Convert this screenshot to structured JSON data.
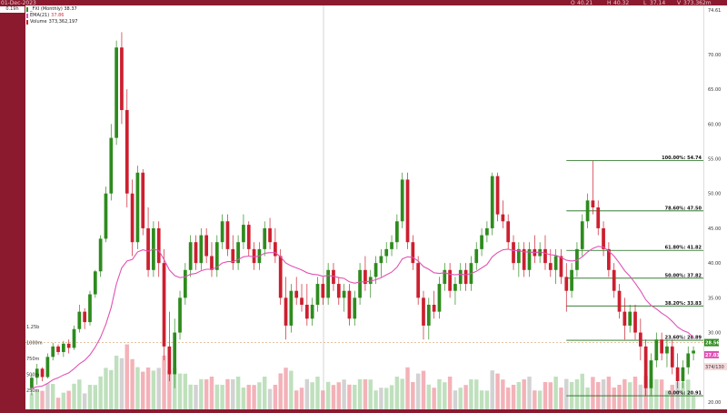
{
  "header": {
    "date_label": "01-Dec-2023",
    "open": "O",
    "open_val": "40.21",
    "high": "H",
    "high_val": "40.32",
    "low": "L",
    "low_val": "37.14",
    "volume": "V",
    "volume_val": "373.362m"
  },
  "left_price_box": "0.19h",
  "legend": {
    "symbol": "_FXI (Monthly) 38.37",
    "ema": "EMA(21)",
    "ema_val": "37.86",
    "vol": "Volume",
    "vol_val": "373,362,197"
  },
  "colors": {
    "up": "#2e8b1e",
    "down": "#cc1f2f",
    "ema": "#e052b3",
    "fib": "#1a6b1a",
    "vol_up": "#bfe0bd",
    "vol_down": "#f3b2b8",
    "vol_gray": "#d2d2d2",
    "frame": "#8b1a2f"
  },
  "chart_data": {
    "type": "candlestick",
    "price_axis": {
      "range": [
        20,
        76
      ],
      "ticks": [
        20,
        25,
        30,
        35,
        40,
        45,
        50,
        55,
        60,
        65,
        70
      ],
      "tick_labels": [
        "20.00",
        "25.00",
        "30.00",
        "35.00",
        "40.00",
        "45.00",
        "50.00",
        "55.00",
        "60.00",
        "65.00",
        "70.00"
      ],
      "top_label": "74.61",
      "current_price_label": "28.56",
      "ema_label": "27.03",
      "last_price_label": "27.41",
      "volume_label": "374/130"
    },
    "volume_axis": {
      "tick_labels": [
        "1.25b",
        "1000m",
        "750m",
        "500m",
        "250m"
      ],
      "tick_values": [
        1250,
        1000,
        750,
        500,
        250
      ]
    },
    "fibonacci": [
      {
        "label": "100.00%: 54.74",
        "price": 54.74
      },
      {
        "label": "78.60%: 47.50",
        "price": 47.5
      },
      {
        "label": "61.80%: 41.82",
        "price": 41.82
      },
      {
        "label": "50.00%: 37.82",
        "price": 37.82
      },
      {
        "label": "38.20%: 33.83",
        "price": 33.83
      },
      {
        "label": "23.60%: 28.89",
        "price": 28.89
      },
      {
        "label": "0.00%: 20.91",
        "price": 20.91
      }
    ],
    "candles": [
      [
        22,
        24,
        21,
        23.5
      ],
      [
        23.5,
        25.5,
        22.5,
        24.8
      ],
      [
        24.8,
        25,
        23,
        23.6
      ],
      [
        23.6,
        27,
        23.4,
        26.5
      ],
      [
        26.5,
        28.5,
        26,
        28
      ],
      [
        28,
        28.3,
        26.8,
        27.2
      ],
      [
        27.2,
        28.8,
        26.5,
        28.4
      ],
      [
        28.4,
        29,
        27,
        27.8
      ],
      [
        27.8,
        31,
        27.5,
        30.5
      ],
      [
        30.5,
        34,
        30,
        33
      ],
      [
        33,
        33.5,
        30.5,
        31.5
      ],
      [
        31.5,
        36,
        31,
        35.5
      ],
      [
        35.5,
        39,
        35,
        38.8
      ],
      [
        38.8,
        44,
        38,
        43.5
      ],
      [
        43.5,
        51,
        43,
        50
      ],
      [
        50,
        60,
        49,
        58
      ],
      [
        58,
        72,
        57,
        71
      ],
      [
        71,
        73.2,
        60,
        62
      ],
      [
        62,
        65,
        48,
        50
      ],
      [
        50,
        52,
        41,
        43
      ],
      [
        43,
        54,
        42,
        53
      ],
      [
        53,
        53.5,
        44,
        45
      ],
      [
        45,
        48,
        38,
        39
      ],
      [
        39,
        46,
        38,
        45
      ],
      [
        45,
        46,
        38,
        40
      ],
      [
        40,
        42,
        26,
        28
      ],
      [
        28,
        33,
        23,
        24
      ],
      [
        24,
        32,
        22,
        30
      ],
      [
        30,
        36,
        29,
        35
      ],
      [
        35,
        40,
        34,
        39
      ],
      [
        39,
        44,
        38,
        43
      ],
      [
        43,
        44,
        39,
        40
      ],
      [
        40,
        45,
        39,
        44
      ],
      [
        44,
        45,
        40,
        41
      ],
      [
        41,
        43,
        38,
        39
      ],
      [
        39,
        44,
        38,
        43
      ],
      [
        43,
        47,
        42,
        46
      ],
      [
        46,
        47,
        41,
        42
      ],
      [
        42,
        44,
        39,
        40
      ],
      [
        40,
        44,
        39,
        43
      ],
      [
        43,
        47,
        42,
        45.5
      ],
      [
        45.5,
        46,
        41,
        42
      ],
      [
        42,
        43,
        39,
        40
      ],
      [
        40,
        43,
        39,
        42
      ],
      [
        42,
        46,
        41,
        45
      ],
      [
        45,
        46.5,
        42,
        43
      ],
      [
        43,
        45,
        40,
        41
      ],
      [
        41,
        42,
        34,
        35
      ],
      [
        35,
        38,
        29,
        31
      ],
      [
        31,
        37,
        30,
        36
      ],
      [
        36,
        38,
        34,
        35
      ],
      [
        35,
        37,
        33,
        34
      ],
      [
        34,
        37,
        31,
        32
      ],
      [
        32,
        35,
        31,
        34
      ],
      [
        34,
        38,
        33,
        37
      ],
      [
        37,
        38,
        34,
        35
      ],
      [
        35,
        40,
        34,
        39
      ],
      [
        39,
        40,
        36,
        37
      ],
      [
        37,
        38,
        34,
        35
      ],
      [
        35,
        37,
        33,
        36
      ],
      [
        36,
        37,
        31,
        32
      ],
      [
        32,
        36,
        31,
        35
      ],
      [
        35,
        40,
        34,
        39
      ],
      [
        39,
        41,
        36,
        37
      ],
      [
        37,
        39,
        35,
        38
      ],
      [
        38,
        41,
        37,
        40
      ],
      [
        40,
        42,
        38,
        41
      ],
      [
        41,
        43,
        40,
        42
      ],
      [
        42,
        44,
        41,
        43
      ],
      [
        43,
        47,
        42,
        46
      ],
      [
        46,
        53,
        45,
        52
      ],
      [
        52,
        53,
        42,
        43
      ],
      [
        43,
        44,
        39,
        40
      ],
      [
        40,
        41,
        34,
        35
      ],
      [
        35,
        36,
        29,
        31
      ],
      [
        31,
        35,
        29,
        34
      ],
      [
        34,
        36,
        32,
        33
      ],
      [
        33,
        38,
        32,
        37
      ],
      [
        37,
        40,
        36,
        39
      ],
      [
        39,
        40,
        35,
        36
      ],
      [
        36,
        38,
        34,
        37
      ],
      [
        37,
        40,
        36,
        39
      ],
      [
        39,
        40,
        36,
        37
      ],
      [
        37,
        41,
        36,
        40
      ],
      [
        40,
        43,
        39,
        42
      ],
      [
        42,
        45,
        41,
        44
      ],
      [
        44,
        46,
        43,
        45
      ],
      [
        45,
        53,
        44,
        52.5
      ],
      [
        52.5,
        53,
        46,
        47
      ],
      [
        47,
        49,
        45,
        46
      ],
      [
        46,
        47,
        42,
        43
      ],
      [
        43,
        44,
        39,
        40
      ],
      [
        40,
        43,
        38,
        42
      ],
      [
        42,
        43,
        38,
        39
      ],
      [
        39,
        43,
        38,
        42
      ],
      [
        42,
        44,
        40,
        41
      ],
      [
        41,
        43,
        40,
        42
      ],
      [
        42,
        44,
        39,
        40
      ],
      [
        40,
        42,
        38,
        39
      ],
      [
        39,
        42,
        37,
        41
      ],
      [
        41,
        42,
        37,
        38
      ],
      [
        38,
        40,
        33,
        36
      ],
      [
        36,
        40,
        35,
        39
      ],
      [
        39,
        43,
        38,
        42
      ],
      [
        42,
        47,
        41,
        46
      ],
      [
        46,
        50,
        45,
        49
      ],
      [
        49,
        54.7,
        47,
        48
      ],
      [
        48,
        49,
        44,
        45
      ],
      [
        45,
        46,
        41,
        42
      ],
      [
        42,
        43,
        38,
        39
      ],
      [
        39,
        40,
        35,
        36
      ],
      [
        36,
        37,
        32,
        33
      ],
      [
        33,
        35,
        29,
        31
      ],
      [
        31,
        34,
        30,
        33
      ],
      [
        33,
        34,
        29,
        30
      ],
      [
        30,
        32,
        26,
        28
      ],
      [
        28,
        29,
        20.9,
        22
      ],
      [
        22,
        27,
        21,
        26
      ],
      [
        26,
        30,
        25,
        29
      ],
      [
        29,
        30,
        26,
        27
      ],
      [
        27,
        29,
        25,
        28
      ],
      [
        28,
        29,
        24,
        25
      ],
      [
        25,
        27,
        22,
        23
      ],
      [
        23,
        26,
        22,
        25
      ],
      [
        25,
        28,
        24,
        27
      ],
      [
        27,
        28,
        26,
        27.4
      ]
    ],
    "ema": [
      22,
      22.2,
      22.3,
      22.7,
      23.2,
      23.5,
      23.9,
      24.2,
      24.8,
      25.5,
      26,
      26.8,
      27.9,
      29.3,
      31.2,
      33.6,
      37,
      39.3,
      40.3,
      40.5,
      41.6,
      41.9,
      41.7,
      42,
      41.8,
      40.5,
      39,
      38.2,
      37.9,
      38,
      38.4,
      38.5,
      38.9,
      39.1,
      39.1,
      39.4,
      40,
      40.2,
      40.2,
      40.5,
      40.9,
      41,
      40.9,
      41,
      41.4,
      41.5,
      41.5,
      40.9,
      40,
      39.6,
      39.3,
      39,
      38.6,
      38.4,
      38.3,
      38.1,
      38.2,
      38.1,
      37.9,
      37.8,
      37.3,
      37.1,
      37.3,
      37.3,
      37.4,
      37.6,
      37.9,
      38.3,
      38.7,
      39.4,
      40.6,
      40.9,
      40.8,
      40.3,
      39.5,
      39.1,
      38.6,
      38.5,
      38.6,
      38.4,
      38.3,
      38.4,
      38.3,
      38.5,
      38.8,
      39.3,
      39.8,
      40.9,
      41.5,
      41.9,
      42,
      41.8,
      41.8,
      41.6,
      41.6,
      41.5,
      41.6,
      41.4,
      41.2,
      41.1,
      40.8,
      40.4,
      40.3,
      40.4,
      40.9,
      41.6,
      42.1,
      42.4,
      42.3,
      41.7,
      41,
      40,
      38.9,
      38.1,
      37.1,
      36,
      34.7,
      33.9,
      33.4,
      32.8,
      32.3,
      31.6,
      30.8,
      30.3,
      30,
      29.3
    ]
  }
}
